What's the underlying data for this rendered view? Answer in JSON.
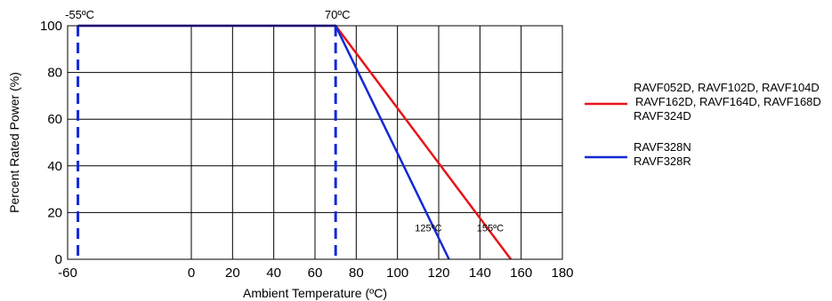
{
  "chart_data": {
    "type": "line",
    "xlabel": "Ambient Temperature (ºC)",
    "ylabel": "Percent Rated Power (%)",
    "xlim": [
      -60,
      180
    ],
    "ylim": [
      0,
      100
    ],
    "x_ticks": [
      -60,
      0,
      20,
      40,
      60,
      80,
      100,
      120,
      140,
      160,
      180
    ],
    "y_ticks": [
      0,
      20,
      40,
      60,
      80,
      100
    ],
    "grid": true,
    "legend_position": "right",
    "series": [
      {
        "name": "RAVF052D, RAVF102D, RAVF104D RAVF162D, RAVF164D, RAVF168D RAVF324D",
        "legend_lines": [
          "RAVF052D, RAVF102D, RAVF104D",
          "RAVF162D, RAVF164D, RAVF168D",
          "RAVF324D"
        ],
        "color": "#e8141b",
        "x": [
          -55,
          70,
          155
        ],
        "y": [
          100,
          100,
          0
        ]
      },
      {
        "name": "RAVF328N RAVF328R",
        "legend_lines": [
          "RAVF328N",
          "RAVF328R"
        ],
        "color": "#1428d6",
        "x": [
          -55,
          70,
          125
        ],
        "y": [
          100,
          100,
          0
        ]
      }
    ],
    "reference_lines": [
      {
        "x": -55,
        "color": "#1428d6",
        "style": "dashed"
      },
      {
        "x": 70,
        "color": "#1428d6",
        "style": "dashed"
      }
    ],
    "annotations": [
      {
        "text": "-55ºC",
        "x": -55,
        "y": 100,
        "position": "top"
      },
      {
        "text": "70ºC",
        "x": 70,
        "y": 100,
        "position": "top"
      },
      {
        "text": "125ºC",
        "x": 125,
        "y": 10,
        "position": "left"
      },
      {
        "text": "155ºC",
        "x": 155,
        "y": 10,
        "position": "left"
      }
    ]
  }
}
